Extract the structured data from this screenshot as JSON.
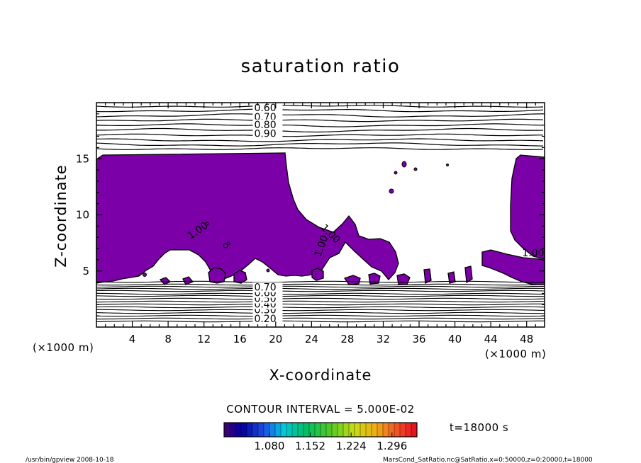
{
  "chart_data": {
    "type": "contour",
    "title": "saturation ratio",
    "xlabel": "X-coordinate",
    "ylabel": "Z-coordinate",
    "x_unit": "(×1000 m)",
    "y_unit": "(×1000 m)",
    "xlim": [
      0,
      50
    ],
    "ylim": [
      0,
      20
    ],
    "x_ticks": [
      4,
      8,
      12,
      16,
      20,
      24,
      28,
      32,
      36,
      40,
      44,
      48
    ],
    "y_ticks": [
      5,
      10,
      15
    ],
    "contour_interval": "CONTOUR INTERVAL = 5.000E-02",
    "upper_contour_labels": [
      {
        "text": "0.60",
        "x": 17.6,
        "z": 19.3
      },
      {
        "text": "0.70",
        "x": 17.6,
        "z": 18.5
      },
      {
        "text": "0.80",
        "x": 17.6,
        "z": 17.8
      },
      {
        "text": "0.90",
        "x": 17.6,
        "z": 17.0
      }
    ],
    "lower_contour_labels": [
      {
        "text": "0.20",
        "x": 17.6,
        "z": 0.5
      },
      {
        "text": "0.30",
        "x": 17.6,
        "z": 1.3
      },
      {
        "text": "0.40",
        "x": 17.6,
        "z": 1.8
      },
      {
        "text": "0.50",
        "x": 17.6,
        "z": 2.3
      },
      {
        "text": "0.60",
        "x": 17.6,
        "z": 2.8
      },
      {
        "text": "0.70",
        "x": 17.6,
        "z": 3.3
      }
    ],
    "supersaturated_labels": [
      {
        "text": "1.00",
        "x": 10.5,
        "z": 7.8,
        "rotate": -35
      },
      {
        "text": "1.00",
        "x": 25.0,
        "z": 8.8,
        "rotate": 45
      },
      {
        "text": "1.00",
        "x": 25.0,
        "z": 6.2,
        "rotate": -70
      },
      {
        "text": "1.00",
        "x": 47.5,
        "z": 6.3,
        "rotate": 0
      }
    ],
    "fill_color": "#7b00a8",
    "colorbar": {
      "labels": [
        "1.080",
        "1.152",
        "1.224",
        "1.296"
      ],
      "range": [
        1.0,
        1.34
      ]
    },
    "time_label": "t=18000 s"
  },
  "footer": {
    "left": "/usr/bin/gpview   2008-10-18",
    "right": "MarsCond_SatRatio.nc@SatRatio,x=0:50000,z=0:20000,t=18000"
  }
}
